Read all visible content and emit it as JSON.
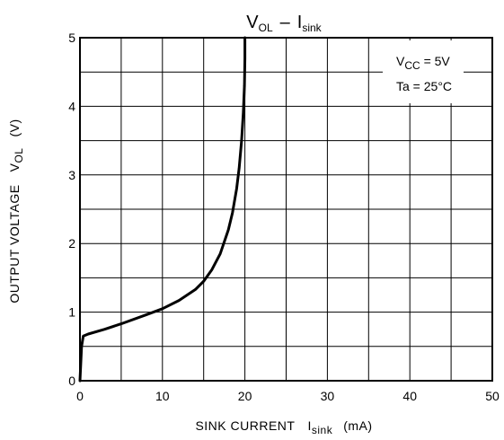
{
  "chart_data": {
    "type": "line",
    "title": {
      "main": "V",
      "main_sub": "OL",
      "sep": "–",
      "tail": "I",
      "tail_sub": "sink"
    },
    "xlabel": {
      "text": "SINK CURRENT",
      "sym": "I",
      "sym_sub": "sink",
      "unit": "(mA)"
    },
    "ylabel": {
      "text": "OUTPUT VOLTAGE",
      "sym": "V",
      "sym_sub": "OL",
      "unit": "(V)"
    },
    "conditions": [
      {
        "sym": "V",
        "sub": "CC",
        "rest": " = 5V"
      },
      {
        "sym": "Ta = 25°C",
        "sub": "",
        "rest": ""
      }
    ],
    "xlim": [
      0,
      50
    ],
    "ylim": [
      0,
      5
    ],
    "x_ticks": [
      "0",
      "10",
      "20",
      "30",
      "40",
      "50"
    ],
    "y_ticks": [
      "0",
      "1",
      "2",
      "3",
      "4",
      "5"
    ],
    "grid": true,
    "series": [
      {
        "color": "#000000",
        "x": [
          0,
          0.2,
          0.4,
          1,
          3,
          5,
          8,
          10,
          12,
          14,
          15,
          16,
          17,
          18,
          18.5,
          19,
          19.3,
          19.6,
          19.8,
          19.95,
          20,
          20
        ],
        "y": [
          0,
          0.5,
          0.65,
          0.68,
          0.75,
          0.83,
          0.96,
          1.05,
          1.17,
          1.33,
          1.45,
          1.62,
          1.85,
          2.2,
          2.45,
          2.8,
          3.1,
          3.5,
          3.9,
          4.3,
          4.7,
          5.0
        ]
      }
    ]
  }
}
